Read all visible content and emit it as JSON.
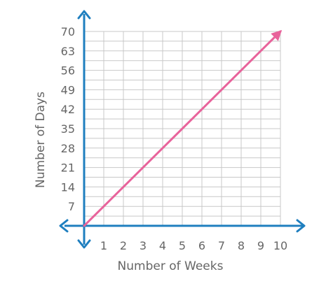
{
  "chart_data": {
    "type": "line",
    "xlabel": "Number of Weeks",
    "ylabel": "Number of Days",
    "xlim": [
      0,
      10
    ],
    "ylim": [
      0,
      70
    ],
    "x_ticks": [
      "1",
      "2",
      "3",
      "4",
      "5",
      "6",
      "7",
      "8",
      "9",
      "10"
    ],
    "y_ticks": [
      "7",
      "14",
      "21",
      "28",
      "35",
      "42",
      "49",
      "56",
      "63",
      "70"
    ],
    "grid": true,
    "series": [
      {
        "x": [
          0,
          10
        ],
        "y": [
          0,
          70
        ],
        "color": "#e8639b",
        "arrow_end": true
      }
    ],
    "axis_color": "#1f7fbf",
    "grid_color": "#c8c8c8"
  }
}
